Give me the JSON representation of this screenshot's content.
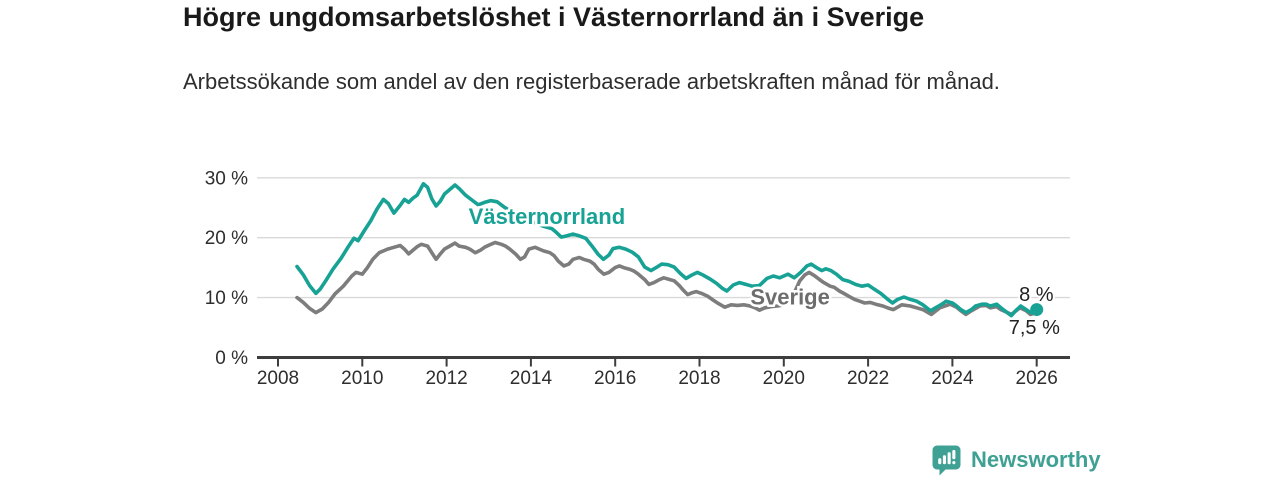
{
  "header": {
    "title": "Högre ungdomsarbetslöshet i Västernorrland än i Sverige",
    "subtitle": "Arbetssökande som andel av den registerbaserade arbetskraften månad för månad."
  },
  "footer": {
    "brand": "Newsworthy",
    "brand_color": "#3fa094",
    "logo_icon": "newsworthy-chart-bubble-icon"
  },
  "chart_data": {
    "type": "line",
    "title": "Högre ungdomsarbetslöshet i Västernorrland än i Sverige",
    "subtitle": "Arbetssökande som andel av den registerbaserade arbetskraften månad för månad.",
    "xlabel": "",
    "ylabel": "",
    "unit": "%",
    "grid": true,
    "legend_position": "inline-labels",
    "xlim": [
      2007.5,
      2026.75
    ],
    "ylim": [
      0,
      31
    ],
    "x_ticks": [
      2008,
      2010,
      2012,
      2014,
      2016,
      2018,
      2020,
      2022,
      2024,
      2026
    ],
    "x_tick_labels": [
      "2008",
      "2010",
      "2012",
      "2014",
      "2016",
      "2018",
      "2020",
      "2022",
      "2024",
      "2026"
    ],
    "y_ticks": [
      0,
      10,
      20,
      30
    ],
    "y_tick_labels": [
      "0 %",
      "10 %",
      "20 %",
      "30 %"
    ],
    "colors": {
      "grid": "#d9d9d9",
      "axis": "#3d3d3d",
      "tick_text": "#2e2e2e"
    },
    "series": [
      {
        "id": "sverige",
        "name": "Sverige",
        "color": "#7d7d7d",
        "end_dot": false,
        "end_value": "7,5 %",
        "points": [
          [
            2008.45,
            10.0
          ],
          [
            2008.6,
            9.2
          ],
          [
            2008.75,
            8.2
          ],
          [
            2008.9,
            7.5
          ],
          [
            2009.05,
            8.1
          ],
          [
            2009.2,
            9.2
          ],
          [
            2009.35,
            10.6
          ],
          [
            2009.55,
            11.9
          ],
          [
            2009.75,
            13.6
          ],
          [
            2009.85,
            14.2
          ],
          [
            2010.0,
            13.9
          ],
          [
            2010.12,
            15.0
          ],
          [
            2010.25,
            16.4
          ],
          [
            2010.4,
            17.5
          ],
          [
            2010.6,
            18.1
          ],
          [
            2010.75,
            18.4
          ],
          [
            2010.9,
            18.7
          ],
          [
            2011.0,
            18.1
          ],
          [
            2011.1,
            17.3
          ],
          [
            2011.2,
            17.9
          ],
          [
            2011.3,
            18.5
          ],
          [
            2011.4,
            18.9
          ],
          [
            2011.55,
            18.6
          ],
          [
            2011.65,
            17.5
          ],
          [
            2011.75,
            16.4
          ],
          [
            2011.85,
            17.3
          ],
          [
            2011.95,
            18.1
          ],
          [
            2012.1,
            18.7
          ],
          [
            2012.2,
            19.1
          ],
          [
            2012.3,
            18.6
          ],
          [
            2012.45,
            18.4
          ],
          [
            2012.55,
            18.1
          ],
          [
            2012.68,
            17.5
          ],
          [
            2012.8,
            17.9
          ],
          [
            2012.9,
            18.4
          ],
          [
            2013.05,
            18.9
          ],
          [
            2013.15,
            19.2
          ],
          [
            2013.3,
            18.9
          ],
          [
            2013.4,
            18.6
          ],
          [
            2013.5,
            18.1
          ],
          [
            2013.65,
            17.2
          ],
          [
            2013.75,
            16.4
          ],
          [
            2013.85,
            16.8
          ],
          [
            2013.95,
            18.1
          ],
          [
            2014.1,
            18.4
          ],
          [
            2014.2,
            18.1
          ],
          [
            2014.3,
            17.8
          ],
          [
            2014.45,
            17.5
          ],
          [
            2014.55,
            17.0
          ],
          [
            2014.65,
            16.1
          ],
          [
            2014.78,
            15.3
          ],
          [
            2014.9,
            15.6
          ],
          [
            2015.0,
            16.4
          ],
          [
            2015.15,
            16.7
          ],
          [
            2015.25,
            16.4
          ],
          [
            2015.4,
            16.1
          ],
          [
            2015.5,
            15.6
          ],
          [
            2015.6,
            14.7
          ],
          [
            2015.73,
            13.9
          ],
          [
            2015.85,
            14.2
          ],
          [
            2016.0,
            15.0
          ],
          [
            2016.1,
            15.3
          ],
          [
            2016.2,
            15.0
          ],
          [
            2016.35,
            14.7
          ],
          [
            2016.45,
            14.4
          ],
          [
            2016.55,
            13.9
          ],
          [
            2016.7,
            13.0
          ],
          [
            2016.8,
            12.2
          ],
          [
            2016.92,
            12.5
          ],
          [
            2017.05,
            13.0
          ],
          [
            2017.15,
            13.3
          ],
          [
            2017.3,
            13.0
          ],
          [
            2017.4,
            12.8
          ],
          [
            2017.52,
            12.0
          ],
          [
            2017.62,
            11.2
          ],
          [
            2017.72,
            10.5
          ],
          [
            2017.82,
            10.8
          ],
          [
            2017.92,
            11.0
          ],
          [
            2018.05,
            10.7
          ],
          [
            2018.2,
            10.2
          ],
          [
            2018.32,
            9.6
          ],
          [
            2018.45,
            9.0
          ],
          [
            2018.6,
            8.4
          ],
          [
            2018.75,
            8.8
          ],
          [
            2018.9,
            8.7
          ],
          [
            2019.05,
            8.8
          ],
          [
            2019.2,
            8.6
          ],
          [
            2019.32,
            8.3
          ],
          [
            2019.42,
            7.9
          ],
          [
            2019.55,
            8.3
          ],
          [
            2019.7,
            8.5
          ],
          [
            2019.85,
            8.6
          ],
          [
            2020.0,
            8.8
          ],
          [
            2020.12,
            9.3
          ],
          [
            2020.25,
            10.8
          ],
          [
            2020.38,
            12.8
          ],
          [
            2020.5,
            13.8
          ],
          [
            2020.6,
            14.2
          ],
          [
            2020.72,
            13.7
          ],
          [
            2020.85,
            13.0
          ],
          [
            2020.95,
            12.5
          ],
          [
            2021.1,
            11.9
          ],
          [
            2021.2,
            11.7
          ],
          [
            2021.32,
            11.1
          ],
          [
            2021.45,
            10.6
          ],
          [
            2021.55,
            10.2
          ],
          [
            2021.68,
            9.7
          ],
          [
            2021.8,
            9.4
          ],
          [
            2021.92,
            9.1
          ],
          [
            2022.05,
            9.2
          ],
          [
            2022.18,
            8.9
          ],
          [
            2022.35,
            8.6
          ],
          [
            2022.5,
            8.2
          ],
          [
            2022.6,
            8.0
          ],
          [
            2022.8,
            8.8
          ],
          [
            2023.0,
            8.6
          ],
          [
            2023.15,
            8.3
          ],
          [
            2023.3,
            8.0
          ],
          [
            2023.5,
            7.2
          ],
          [
            2023.7,
            8.3
          ],
          [
            2023.95,
            8.9
          ],
          [
            2024.1,
            8.4
          ],
          [
            2024.2,
            7.8
          ],
          [
            2024.32,
            7.2
          ],
          [
            2024.45,
            7.8
          ],
          [
            2024.65,
            8.6
          ],
          [
            2024.8,
            8.7
          ],
          [
            2024.9,
            8.3
          ],
          [
            2025.05,
            8.5
          ],
          [
            2025.15,
            8.0
          ],
          [
            2025.4,
            7.2
          ],
          [
            2025.6,
            8.3
          ],
          [
            2025.75,
            7.8
          ],
          [
            2025.85,
            7.2
          ],
          [
            2026.0,
            7.5
          ]
        ]
      },
      {
        "id": "vasternorrland",
        "name": "Västernorrland",
        "color": "#17a295",
        "end_dot": true,
        "end_value": "8 %",
        "points": [
          [
            2008.45,
            15.2
          ],
          [
            2008.6,
            13.8
          ],
          [
            2008.75,
            12.0
          ],
          [
            2008.9,
            10.7
          ],
          [
            2009.0,
            11.4
          ],
          [
            2009.15,
            13.0
          ],
          [
            2009.3,
            14.7
          ],
          [
            2009.5,
            16.6
          ],
          [
            2009.65,
            18.3
          ],
          [
            2009.8,
            19.9
          ],
          [
            2009.9,
            19.5
          ],
          [
            2010.05,
            21.2
          ],
          [
            2010.2,
            22.8
          ],
          [
            2010.35,
            24.8
          ],
          [
            2010.5,
            26.4
          ],
          [
            2010.62,
            25.7
          ],
          [
            2010.75,
            24.1
          ],
          [
            2010.9,
            25.4
          ],
          [
            2011.0,
            26.4
          ],
          [
            2011.1,
            25.9
          ],
          [
            2011.2,
            26.6
          ],
          [
            2011.3,
            27.1
          ],
          [
            2011.45,
            29.0
          ],
          [
            2011.55,
            28.4
          ],
          [
            2011.65,
            26.5
          ],
          [
            2011.75,
            25.3
          ],
          [
            2011.85,
            26.1
          ],
          [
            2011.95,
            27.3
          ],
          [
            2012.1,
            28.2
          ],
          [
            2012.2,
            28.8
          ],
          [
            2012.3,
            28.2
          ],
          [
            2012.45,
            27.1
          ],
          [
            2012.6,
            26.3
          ],
          [
            2012.75,
            25.5
          ],
          [
            2012.9,
            25.9
          ],
          [
            2013.05,
            26.2
          ],
          [
            2013.2,
            26.0
          ],
          [
            2013.35,
            25.2
          ],
          [
            2013.5,
            24.5
          ],
          [
            2013.7,
            23.5
          ],
          [
            2013.9,
            22.7
          ],
          [
            2014.1,
            22.5
          ],
          [
            2014.3,
            21.9
          ],
          [
            2014.5,
            21.5
          ],
          [
            2014.6,
            20.9
          ],
          [
            2014.72,
            20.1
          ],
          [
            2014.85,
            20.3
          ],
          [
            2015.0,
            20.6
          ],
          [
            2015.15,
            20.3
          ],
          [
            2015.3,
            19.9
          ],
          [
            2015.45,
            18.6
          ],
          [
            2015.6,
            17.2
          ],
          [
            2015.72,
            16.4
          ],
          [
            2015.85,
            17.1
          ],
          [
            2015.95,
            18.2
          ],
          [
            2016.1,
            18.4
          ],
          [
            2016.25,
            18.1
          ],
          [
            2016.4,
            17.6
          ],
          [
            2016.55,
            16.8
          ],
          [
            2016.7,
            15.1
          ],
          [
            2016.85,
            14.5
          ],
          [
            2016.97,
            15.0
          ],
          [
            2017.1,
            15.6
          ],
          [
            2017.25,
            15.5
          ],
          [
            2017.4,
            15.1
          ],
          [
            2017.55,
            14.0
          ],
          [
            2017.68,
            13.2
          ],
          [
            2017.8,
            13.7
          ],
          [
            2017.95,
            14.2
          ],
          [
            2018.1,
            13.7
          ],
          [
            2018.25,
            13.1
          ],
          [
            2018.4,
            12.4
          ],
          [
            2018.55,
            11.5
          ],
          [
            2018.65,
            11.1
          ],
          [
            2018.8,
            12.1
          ],
          [
            2018.95,
            12.5
          ],
          [
            2019.1,
            12.2
          ],
          [
            2019.25,
            11.9
          ],
          [
            2019.42,
            12.0
          ],
          [
            2019.6,
            13.2
          ],
          [
            2019.75,
            13.6
          ],
          [
            2019.9,
            13.3
          ],
          [
            2020.0,
            13.6
          ],
          [
            2020.1,
            13.9
          ],
          [
            2020.25,
            13.3
          ],
          [
            2020.4,
            14.2
          ],
          [
            2020.55,
            15.3
          ],
          [
            2020.65,
            15.6
          ],
          [
            2020.8,
            14.9
          ],
          [
            2020.9,
            14.5
          ],
          [
            2021.0,
            14.8
          ],
          [
            2021.12,
            14.5
          ],
          [
            2021.25,
            13.9
          ],
          [
            2021.4,
            13.0
          ],
          [
            2021.55,
            12.7
          ],
          [
            2021.7,
            12.2
          ],
          [
            2021.85,
            11.9
          ],
          [
            2022.0,
            12.1
          ],
          [
            2022.15,
            11.4
          ],
          [
            2022.3,
            10.7
          ],
          [
            2022.45,
            9.8
          ],
          [
            2022.58,
            9.1
          ],
          [
            2022.7,
            9.7
          ],
          [
            2022.85,
            10.1
          ],
          [
            2023.0,
            9.7
          ],
          [
            2023.15,
            9.4
          ],
          [
            2023.3,
            8.8
          ],
          [
            2023.48,
            7.8
          ],
          [
            2023.6,
            8.3
          ],
          [
            2023.75,
            8.9
          ],
          [
            2023.85,
            9.4
          ],
          [
            2024.0,
            9.1
          ],
          [
            2024.1,
            8.6
          ],
          [
            2024.2,
            8.0
          ],
          [
            2024.32,
            7.5
          ],
          [
            2024.45,
            8.0
          ],
          [
            2024.55,
            8.6
          ],
          [
            2024.7,
            8.9
          ],
          [
            2024.8,
            8.9
          ],
          [
            2024.9,
            8.6
          ],
          [
            2025.05,
            8.9
          ],
          [
            2025.15,
            8.3
          ],
          [
            2025.3,
            7.5
          ],
          [
            2025.4,
            7.0
          ],
          [
            2025.5,
            7.8
          ],
          [
            2025.62,
            8.6
          ],
          [
            2025.75,
            8.0
          ],
          [
            2025.85,
            7.5
          ],
          [
            2026.0,
            8.0
          ]
        ]
      }
    ],
    "annotations": [
      {
        "id": "vasternorrland-label",
        "text": "Västernorrland",
        "x": 2014.38,
        "y": 23.6,
        "color": "#17a295",
        "anchor": "middle",
        "weight": 700,
        "size": 22,
        "halo": 5
      },
      {
        "id": "sverige-label",
        "text": "Sverige",
        "x": 2020.15,
        "y": 10.1,
        "color": "#6d6d6d",
        "anchor": "middle",
        "weight": 700,
        "size": 22,
        "halo": 5
      },
      {
        "id": "end-value-vasternorrland",
        "text": "8 %",
        "x": 2026.4,
        "y": 10.6,
        "color": "#222222",
        "anchor": "end",
        "weight": 400,
        "size": 20,
        "halo": 4
      },
      {
        "id": "end-value-sverige",
        "text": "7,5 %",
        "x": 2026.55,
        "y": 5.1,
        "color": "#222222",
        "anchor": "end",
        "weight": 400,
        "size": 20,
        "halo": 4
      }
    ]
  }
}
